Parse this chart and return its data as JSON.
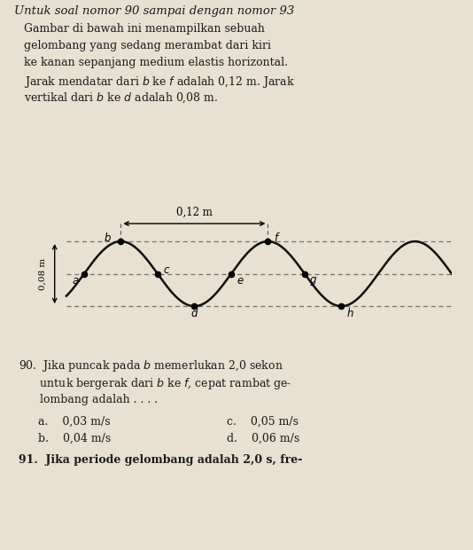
{
  "title": "Untuk soal nomor 90 sampai dengan nomor 93",
  "paragraph_lines": [
    "Gambar di bawah ini menampilkan sebuah",
    "gelombang yang sedang merambat dari kiri",
    "ke kanan sepanjang medium elastis horizontal.",
    "Jarak mendatar dari $b$ ke $f$ adalah 0,12 m. Jarak",
    "vertikal dari $b$ ke $d$ adalah 0,08 m."
  ],
  "wave_h_label": "0,12 m",
  "wave_v_label": "0,08 m",
  "q90_lines": [
    "90.  Jika puncak pada $b$ memerlukan 2,0 sekon",
    "      untuk bergerak dari $b$ ke $f$, cepat rambat ge-",
    "      lombang adalah . . . ."
  ],
  "q90_ans": [
    [
      "a.    0,03 m/s",
      "c.    0,05 m/s"
    ],
    [
      "b.    0,04 m/s",
      "d.    0,06 m/s"
    ]
  ],
  "q91_line": "91.  Jika periode gelombang adalah 2,0 s, fre-",
  "bg_color": "#e8e0d0",
  "wave_bg": "#d8d0c0",
  "text_color": "#1a1a1a",
  "wave_color": "#111111",
  "dash_color": "#666666"
}
